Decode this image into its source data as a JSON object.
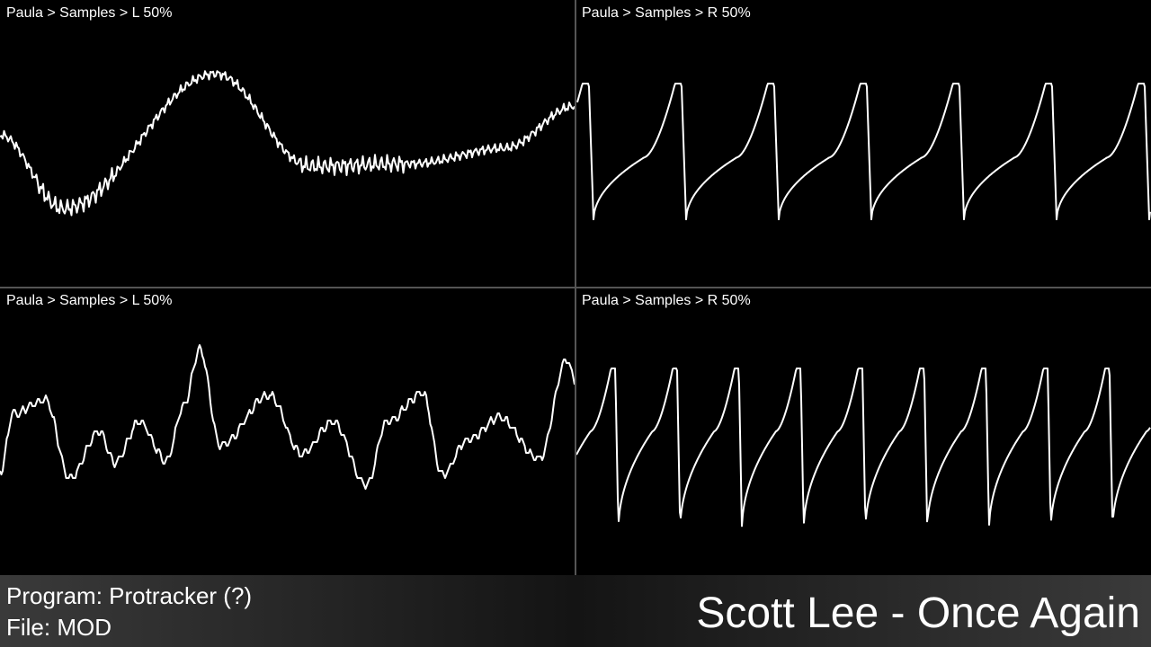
{
  "panels": [
    {
      "label": "Paula > Samples > L 50%"
    },
    {
      "label": "Paula > Samples > R 50%"
    },
    {
      "label": "Paula > Samples > L 50%"
    },
    {
      "label": "Paula > Samples > R 50%"
    }
  ],
  "footer": {
    "program": "Program: Protracker (?)",
    "file": "File: MOD",
    "title": "Scott Lee - Once Again"
  }
}
